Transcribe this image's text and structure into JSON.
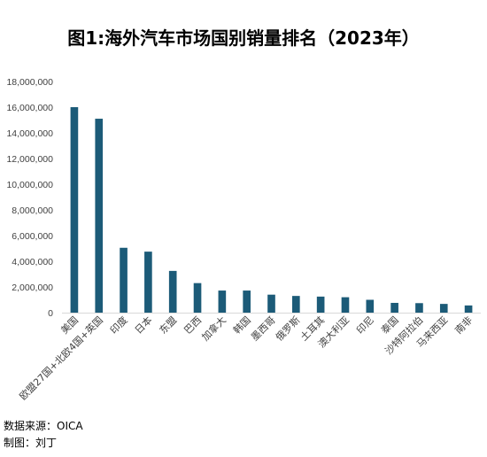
{
  "chart_data": {
    "type": "bar",
    "title": "图1:海外汽车市场国别销量排名（2023年）",
    "xlabel": "",
    "ylabel": "",
    "ylim": [
      0,
      18000000
    ],
    "yticks": [
      0,
      2000000,
      4000000,
      6000000,
      8000000,
      10000000,
      12000000,
      14000000,
      16000000,
      18000000
    ],
    "ytick_labels": [
      "0",
      "2,000,000",
      "4,000,000",
      "6,000,000",
      "8,000,000",
      "10,000,000",
      "12,000,000",
      "14,000,000",
      "16,000,000",
      "18,000,000"
    ],
    "grid": false,
    "legend": "none",
    "bar_color": "#1c5b78",
    "categories": [
      "美国",
      "欧盟27国+北欧4国+英国",
      "印度",
      "日本",
      "东盟",
      "巴西",
      "加拿大",
      "韩国",
      "墨西哥",
      "俄罗斯",
      "土耳其",
      "澳大利亚",
      "印尼",
      "泰国",
      "沙特阿拉伯",
      "马来西亚",
      "南非"
    ],
    "values": [
      16000000,
      15100000,
      5050000,
      4750000,
      3250000,
      2300000,
      1720000,
      1720000,
      1400000,
      1300000,
      1250000,
      1200000,
      1000000,
      760000,
      740000,
      680000,
      560000
    ]
  },
  "footer": {
    "source": "数据来源：OICA",
    "author": "制图：刘丁"
  }
}
